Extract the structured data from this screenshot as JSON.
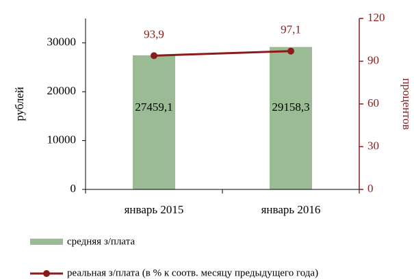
{
  "chart_data": {
    "type": "bar",
    "categories": [
      "январь 2015",
      "январь 2016"
    ],
    "series": [
      {
        "name": "средняя з/плата",
        "type": "bar",
        "color": "#9bbb94",
        "values": [
          27459.1,
          29158.3
        ],
        "value_labels": [
          "27459,1",
          "29158,3"
        ]
      },
      {
        "name": "реальная з/плата (в % к соотв. месяцу предыдущего года)",
        "type": "line",
        "axis": "y2",
        "color": "#8b1a1a",
        "values": [
          93.9,
          97.1
        ],
        "value_labels": [
          "93,9",
          "97,1"
        ]
      }
    ],
    "ylabel": "рублей",
    "y2label": "процентов",
    "ylim": [
      0,
      35000
    ],
    "yticks": [
      0,
      10000,
      20000,
      30000
    ],
    "y2lim": [
      0,
      120
    ],
    "y2ticks": [
      0,
      30,
      60,
      90,
      120
    ],
    "grid": false,
    "legend": "bottom"
  }
}
